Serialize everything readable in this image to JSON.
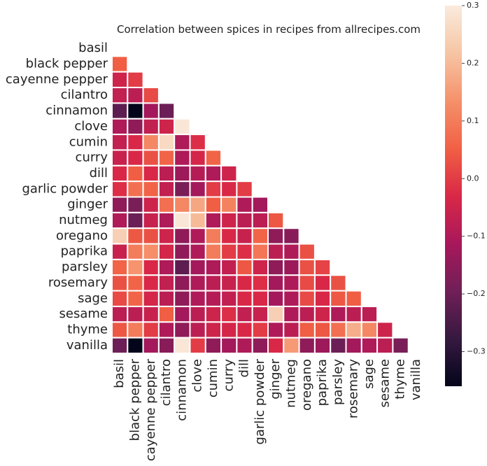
{
  "chart_data": {
    "type": "heatmap",
    "title": "Correlation between spices in recipes from allrecipes.com",
    "x": [
      "basil",
      "black pepper",
      "cayenne pepper",
      "cilantro",
      "cinnamon",
      "clove",
      "cumin",
      "curry",
      "dill",
      "garlic powder",
      "ginger",
      "nutmeg",
      "oregano",
      "paprika",
      "parsley",
      "rosemary",
      "sage",
      "sesame",
      "thyme",
      "vanilla"
    ],
    "y": [
      "basil",
      "black pepper",
      "cayenne pepper",
      "cilantro",
      "cinnamon",
      "clove",
      "cumin",
      "curry",
      "dill",
      "garlic powder",
      "ginger",
      "nutmeg",
      "oregano",
      "paprika",
      "parsley",
      "rosemary",
      "sage",
      "sesame",
      "thyme",
      "vanilla"
    ],
    "values": [
      [
        null,
        null,
        null,
        null,
        null,
        null,
        null,
        null,
        null,
        null,
        null,
        null,
        null,
        null,
        null,
        null,
        null,
        null,
        null,
        null
      ],
      [
        0.05,
        null,
        null,
        null,
        null,
        null,
        null,
        null,
        null,
        null,
        null,
        null,
        null,
        null,
        null,
        null,
        null,
        null,
        null,
        null
      ],
      [
        -0.05,
        0.0,
        null,
        null,
        null,
        null,
        null,
        null,
        null,
        null,
        null,
        null,
        null,
        null,
        null,
        null,
        null,
        null,
        null,
        null
      ],
      [
        -0.07,
        -0.08,
        0.02,
        null,
        null,
        null,
        null,
        null,
        null,
        null,
        null,
        null,
        null,
        null,
        null,
        null,
        null,
        null,
        null,
        null
      ],
      [
        -0.22,
        -0.36,
        -0.12,
        -0.2,
        null,
        null,
        null,
        null,
        null,
        null,
        null,
        null,
        null,
        null,
        null,
        null,
        null,
        null,
        null,
        null
      ],
      [
        -0.1,
        -0.15,
        -0.07,
        -0.05,
        0.29,
        null,
        null,
        null,
        null,
        null,
        null,
        null,
        null,
        null,
        null,
        null,
        null,
        null,
        null,
        null
      ],
      [
        -0.07,
        -0.03,
        0.12,
        0.26,
        -0.1,
        -0.02,
        null,
        null,
        null,
        null,
        null,
        null,
        null,
        null,
        null,
        null,
        null,
        null,
        null,
        null
      ],
      [
        -0.06,
        -0.03,
        0.03,
        0.06,
        -0.1,
        -0.04,
        0.06,
        null,
        null,
        null,
        null,
        null,
        null,
        null,
        null,
        null,
        null,
        null,
        null,
        null
      ],
      [
        -0.03,
        0.05,
        -0.03,
        -0.08,
        -0.13,
        -0.09,
        -0.1,
        -0.05,
        null,
        null,
        null,
        null,
        null,
        null,
        null,
        null,
        null,
        null,
        null,
        null
      ],
      [
        -0.02,
        0.08,
        0.06,
        -0.07,
        -0.18,
        -0.12,
        0.0,
        -0.03,
        0.0,
        null,
        null,
        null,
        null,
        null,
        null,
        null,
        null,
        null,
        null,
        null
      ],
      [
        -0.15,
        -0.18,
        -0.05,
        0.08,
        0.12,
        0.17,
        0.05,
        0.11,
        -0.1,
        -0.12,
        null,
        null,
        null,
        null,
        null,
        null,
        null,
        null,
        null,
        null
      ],
      [
        -0.1,
        -0.2,
        -0.06,
        -0.1,
        0.29,
        0.2,
        -0.1,
        -0.05,
        -0.08,
        -0.08,
        0.04,
        null,
        null,
        null,
        null,
        null,
        null,
        null,
        null,
        null
      ],
      [
        0.24,
        0.04,
        0.03,
        -0.05,
        -0.15,
        -0.1,
        0.1,
        -0.03,
        -0.06,
        0.06,
        -0.15,
        -0.16,
        null,
        null,
        null,
        null,
        null,
        null,
        null,
        null
      ],
      [
        -0.06,
        0.1,
        0.13,
        -0.04,
        -0.15,
        -0.1,
        0.1,
        0.0,
        -0.02,
        0.09,
        -0.08,
        -0.1,
        0.03,
        null,
        null,
        null,
        null,
        null,
        null,
        null
      ],
      [
        0.06,
        0.14,
        -0.03,
        -0.1,
        -0.22,
        -0.12,
        -0.1,
        -0.07,
        0.04,
        -0.05,
        -0.15,
        -0.13,
        0.03,
        0.01,
        null,
        null,
        null,
        null,
        null,
        null
      ],
      [
        0.03,
        0.06,
        -0.03,
        -0.07,
        -0.15,
        -0.1,
        -0.08,
        -0.06,
        -0.03,
        -0.02,
        -0.12,
        -0.1,
        0.02,
        -0.03,
        0.03,
        null,
        null,
        null,
        null,
        null
      ],
      [
        0.02,
        0.06,
        -0.04,
        -0.08,
        -0.15,
        -0.1,
        -0.09,
        -0.07,
        -0.03,
        -0.03,
        -0.12,
        -0.1,
        0.02,
        -0.03,
        0.04,
        0.05,
        null,
        null,
        null,
        null
      ],
      [
        -0.08,
        -0.08,
        -0.06,
        0.05,
        -0.12,
        -0.08,
        -0.05,
        -0.02,
        -0.07,
        -0.06,
        0.24,
        -0.1,
        -0.08,
        -0.05,
        -0.1,
        -0.08,
        -0.08,
        null,
        null,
        null
      ],
      [
        0.04,
        0.1,
        0.0,
        -0.1,
        -0.15,
        -0.08,
        -0.05,
        -0.04,
        -0.03,
        0.0,
        -0.1,
        -0.08,
        0.05,
        0.04,
        0.08,
        0.18,
        0.12,
        -0.05,
        null,
        null
      ],
      [
        -0.2,
        -0.36,
        -0.12,
        -0.16,
        0.29,
        0.0,
        -0.15,
        -0.12,
        -0.1,
        -0.15,
        -0.03,
        0.15,
        -0.15,
        -0.13,
        -0.2,
        -0.12,
        -0.1,
        -0.08,
        -0.18,
        null
      ]
    ],
    "clim": [
      -0.36,
      0.3
    ],
    "cticks": [
      {
        "value": -0.3,
        "label": "−0.3"
      },
      {
        "value": -0.2,
        "label": "−0.2"
      },
      {
        "value": -0.1,
        "label": "−0.1"
      },
      {
        "value": 0,
        "label": "0.0"
      },
      0.1,
      0.2,
      0.3
    ],
    "colormap": [
      "#03051a",
      "#361940",
      "#701f57",
      "#a8185b",
      "#d92847",
      "#f16044",
      "#f5916b",
      "#f6c5a4",
      "#faebdd"
    ]
  }
}
